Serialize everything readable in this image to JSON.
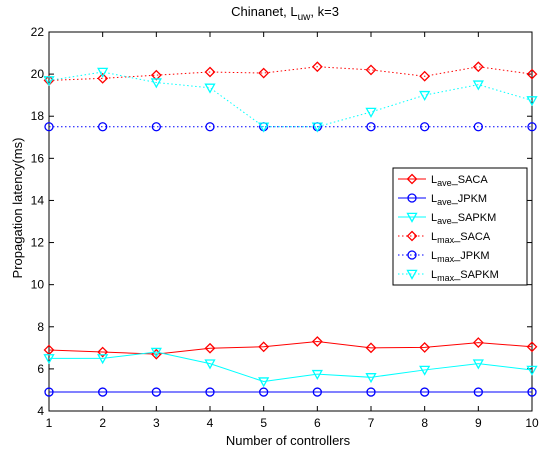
{
  "chart_data": {
    "type": "line",
    "title": {
      "main": "Chinanet, L",
      "sub": "uw",
      "tail": ", k=3"
    },
    "xlabel": "Number of controllers",
    "ylabel": "Propagation latency(ms)",
    "xlim": [
      1,
      10
    ],
    "ylim": [
      4,
      22
    ],
    "x": [
      1,
      2,
      3,
      4,
      5,
      6,
      7,
      8,
      9,
      10
    ],
    "xticks": [
      "1",
      "2",
      "3",
      "4",
      "5",
      "6",
      "7",
      "8",
      "9",
      "10"
    ],
    "yticks": [
      "4",
      "6",
      "8",
      "10",
      "12",
      "14",
      "16",
      "18",
      "20",
      "22"
    ],
    "legend_position": "right",
    "series": [
      {
        "name_main": "L",
        "name_sub": "ave",
        "name_tail": "_SACA",
        "color": "#ff0000",
        "style": "solid",
        "marker": "diamond",
        "values": [
          6.9,
          6.8,
          6.7,
          6.98,
          7.05,
          7.3,
          7.0,
          7.02,
          7.25,
          7.05
        ]
      },
      {
        "name_main": "L",
        "name_sub": "ave",
        "name_tail": "_JPKM",
        "color": "#0000ff",
        "style": "solid",
        "marker": "circle",
        "values": [
          4.9,
          4.9,
          4.9,
          4.9,
          4.9,
          4.9,
          4.9,
          4.9,
          4.9,
          4.9
        ]
      },
      {
        "name_main": "L",
        "name_sub": "ave",
        "name_tail": "_SAPKM",
        "color": "#00ffff",
        "style": "solid",
        "marker": "triangle-down",
        "values": [
          6.5,
          6.5,
          6.8,
          6.25,
          5.4,
          5.75,
          5.6,
          5.95,
          6.25,
          5.95
        ]
      },
      {
        "name_main": "L",
        "name_sub": "max",
        "name_tail": "_SACA",
        "color": "#ff0000",
        "style": "dotted",
        "marker": "diamond",
        "values": [
          19.7,
          19.8,
          19.95,
          20.1,
          20.05,
          20.35,
          20.2,
          19.9,
          20.35,
          20.0
        ]
      },
      {
        "name_main": "L",
        "name_sub": "max",
        "name_tail": "_JPKM",
        "color": "#0000ff",
        "style": "dotted",
        "marker": "circle",
        "values": [
          17.5,
          17.5,
          17.5,
          17.5,
          17.5,
          17.5,
          17.5,
          17.5,
          17.5,
          17.5
        ]
      },
      {
        "name_main": "L",
        "name_sub": "max",
        "name_tail": "_SAPKM",
        "color": "#00ffff",
        "style": "dotted",
        "marker": "triangle-down",
        "values": [
          19.7,
          20.1,
          19.6,
          19.35,
          17.5,
          17.5,
          18.2,
          19.0,
          19.5,
          18.75
        ]
      }
    ]
  }
}
